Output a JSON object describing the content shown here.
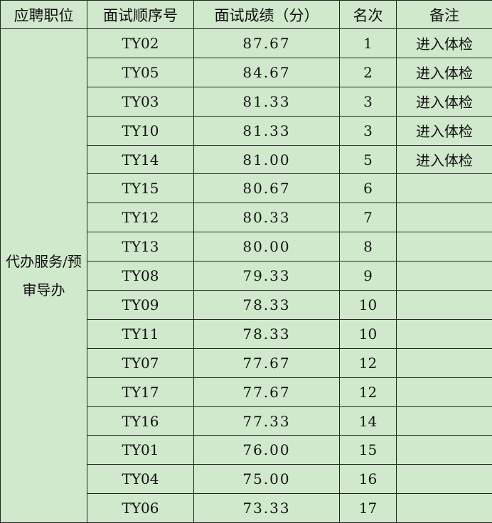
{
  "headers": [
    "应聘职位",
    "面试顺序号",
    "面试成绩（分）",
    "名次",
    "备注"
  ],
  "position": "代办服务/预审导办",
  "rows": [
    {
      "id": "TY02",
      "score": "87.67",
      "rank": "1",
      "note": "进入体检"
    },
    {
      "id": "TY05",
      "score": "84.67",
      "rank": "2",
      "note": "进入体检"
    },
    {
      "id": "TY03",
      "score": "81.33",
      "rank": "3",
      "note": "进入体检"
    },
    {
      "id": "TY10",
      "score": "81.33",
      "rank": "3",
      "note": "进入体检"
    },
    {
      "id": "TY14",
      "score": "81.00",
      "rank": "5",
      "note": "进入体检"
    },
    {
      "id": "TY15",
      "score": "80.67",
      "rank": "6",
      "note": ""
    },
    {
      "id": "TY12",
      "score": "80.33",
      "rank": "7",
      "note": ""
    },
    {
      "id": "TY13",
      "score": "80.00",
      "rank": "8",
      "note": ""
    },
    {
      "id": "TY08",
      "score": "79.33",
      "rank": "9",
      "note": ""
    },
    {
      "id": "TY09",
      "score": "78.33",
      "rank": "10",
      "note": ""
    },
    {
      "id": "TY11",
      "score": "78.33",
      "rank": "10",
      "note": ""
    },
    {
      "id": "TY07",
      "score": "77.67",
      "rank": "12",
      "note": ""
    },
    {
      "id": "TY17",
      "score": "77.67",
      "rank": "12",
      "note": ""
    },
    {
      "id": "TY16",
      "score": "77.33",
      "rank": "14",
      "note": ""
    },
    {
      "id": "TY01",
      "score": "76.00",
      "rank": "15",
      "note": ""
    },
    {
      "id": "TY04",
      "score": "75.00",
      "rank": "16",
      "note": ""
    },
    {
      "id": "TY06",
      "score": "73.33",
      "rank": "17",
      "note": ""
    }
  ]
}
